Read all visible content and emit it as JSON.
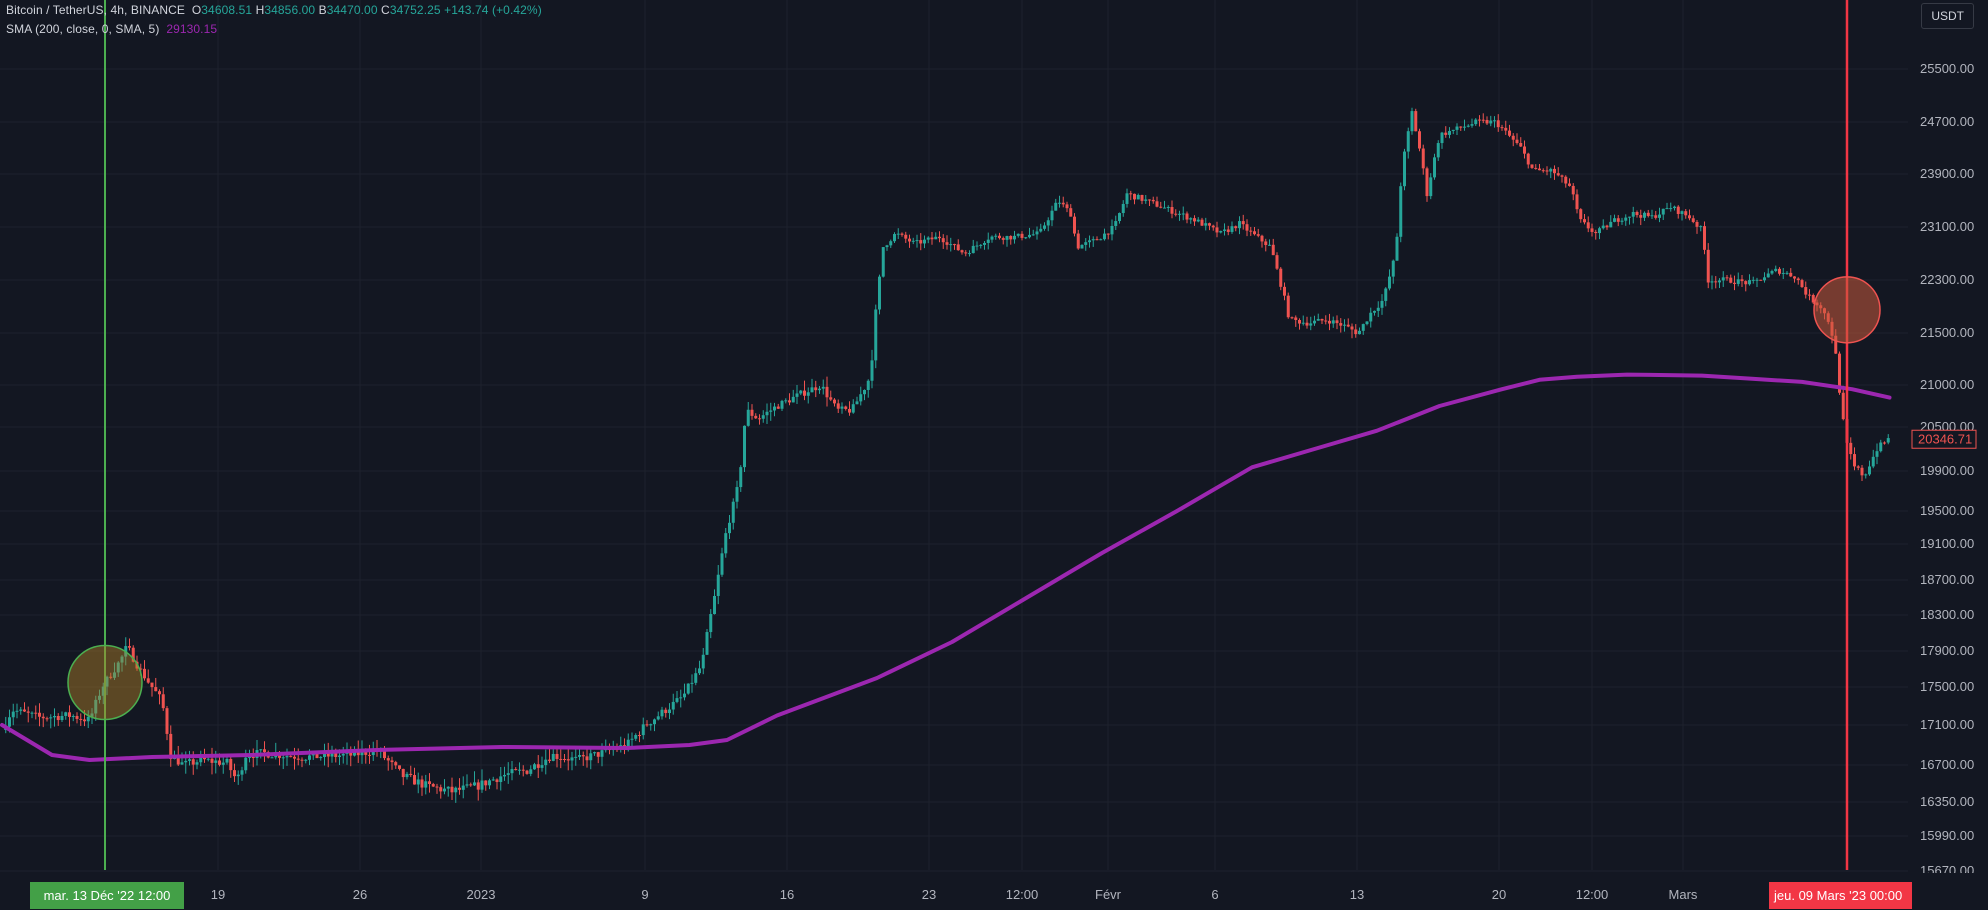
{
  "legend": {
    "symbol": "Bitcoin / TetherUS, 4h, BINANCE",
    "o_label": "O",
    "o_value": "34608.51",
    "h_label": "H",
    "h_value": "34856.00",
    "b_label": "B",
    "b_value": "34470.00",
    "c_label": "C",
    "c_value": "34752.25",
    "change": "+143.74 (+0.42%)",
    "sma_label": "SMA (200, close, 0, SMA, 5)",
    "sma_value": "29130.15"
  },
  "currency": "USDT",
  "colors": {
    "background": "#131722",
    "grid": "#1e222d",
    "up": "#26a69a",
    "down": "#ef5350",
    "sma": "#9c27b0",
    "green_marker": "#4caf50",
    "red_marker": "#f23645"
  },
  "chart_data": {
    "type": "candlestick",
    "interval": "4h",
    "y_axis": {
      "ticks": [
        "25500.00",
        "24700.00",
        "23900.00",
        "23100.00",
        "22300.00",
        "21500.00",
        "21000.00",
        "20500.00",
        "19900.00",
        "19500.00",
        "19100.00",
        "18700.00",
        "18300.00",
        "17900.00",
        "17500.00",
        "17100.00",
        "16700.00",
        "16350.00",
        "15990.00",
        "15670.00"
      ]
    },
    "x_axis": {
      "ticks": [
        "19",
        "26",
        "2023",
        "9",
        "16",
        "23",
        "12:00",
        "Févr",
        "6",
        "13",
        "20",
        "12:00",
        "Mars"
      ]
    },
    "last_price": "20346.71",
    "markers": [
      {
        "type": "vertical",
        "color": "green",
        "label": "mar. 13 Déc '22   12:00"
      },
      {
        "type": "vertical",
        "color": "red",
        "label": "jeu. 09 Mars '23   00:00"
      }
    ],
    "highlight_circles": [
      {
        "color": "green",
        "price": 17550
      },
      {
        "color": "red",
        "price": 21850
      }
    ],
    "price_path": [
      [
        0,
        17050
      ],
      [
        8,
        17260
      ],
      [
        30,
        17180
      ],
      [
        55,
        17200
      ],
      [
        70,
        17150
      ],
      [
        80,
        17500
      ],
      [
        95,
        17800
      ],
      [
        100,
        17950
      ],
      [
        110,
        17700
      ],
      [
        120,
        17500
      ],
      [
        128,
        17350
      ],
      [
        135,
        16800
      ],
      [
        145,
        16700
      ],
      [
        160,
        16750
      ],
      [
        180,
        16720
      ],
      [
        188,
        16550
      ],
      [
        195,
        16800
      ],
      [
        210,
        16820
      ],
      [
        240,
        16780
      ],
      [
        280,
        16800
      ],
      [
        300,
        16850
      ],
      [
        320,
        16600
      ],
      [
        340,
        16500
      ],
      [
        360,
        16450
      ],
      [
        380,
        16500
      ],
      [
        400,
        16600
      ],
      [
        420,
        16650
      ],
      [
        440,
        16800
      ],
      [
        460,
        16750
      ],
      [
        480,
        16820
      ],
      [
        500,
        16900
      ],
      [
        515,
        17100
      ],
      [
        530,
        17250
      ],
      [
        545,
        17400
      ],
      [
        560,
        17750
      ],
      [
        565,
        18150
      ],
      [
        570,
        18500
      ],
      [
        575,
        18900
      ],
      [
        580,
        19300
      ],
      [
        590,
        19800
      ],
      [
        595,
        20700
      ],
      [
        605,
        20600
      ],
      [
        620,
        20750
      ],
      [
        640,
        20900
      ],
      [
        655,
        21000
      ],
      [
        668,
        20700
      ],
      [
        680,
        20700
      ],
      [
        695,
        21100
      ],
      [
        700,
        22000
      ],
      [
        705,
        22800
      ],
      [
        715,
        23000
      ],
      [
        730,
        22850
      ],
      [
        750,
        22950
      ],
      [
        770,
        22700
      ],
      [
        790,
        22950
      ],
      [
        810,
        22950
      ],
      [
        830,
        23000
      ],
      [
        845,
        23500
      ],
      [
        855,
        23300
      ],
      [
        860,
        22800
      ],
      [
        875,
        22900
      ],
      [
        890,
        23100
      ],
      [
        900,
        23600
      ],
      [
        915,
        23500
      ],
      [
        935,
        23350
      ],
      [
        955,
        23200
      ],
      [
        975,
        23000
      ],
      [
        990,
        23150
      ],
      [
        1000,
        23000
      ],
      [
        1015,
        22800
      ],
      [
        1025,
        22100
      ],
      [
        1030,
        21700
      ],
      [
        1045,
        21650
      ],
      [
        1060,
        21700
      ],
      [
        1075,
        21600
      ],
      [
        1085,
        21500
      ],
      [
        1095,
        21800
      ],
      [
        1105,
        22000
      ],
      [
        1115,
        22700
      ],
      [
        1120,
        24000
      ],
      [
        1128,
        24850
      ],
      [
        1135,
        24200
      ],
      [
        1140,
        23600
      ],
      [
        1150,
        24500
      ],
      [
        1165,
        24600
      ],
      [
        1180,
        24700
      ],
      [
        1195,
        24700
      ],
      [
        1205,
        24500
      ],
      [
        1215,
        24300
      ],
      [
        1225,
        23950
      ],
      [
        1240,
        23950
      ],
      [
        1255,
        23700
      ],
      [
        1262,
        23200
      ],
      [
        1275,
        23000
      ],
      [
        1290,
        23200
      ],
      [
        1305,
        23300
      ],
      [
        1320,
        23250
      ],
      [
        1335,
        23400
      ],
      [
        1350,
        23250
      ],
      [
        1360,
        23050
      ],
      [
        1365,
        22300
      ],
      [
        1380,
        22300
      ],
      [
        1400,
        22250
      ],
      [
        1420,
        22450
      ],
      [
        1435,
        22350
      ],
      [
        1445,
        22050
      ],
      [
        1455,
        21900
      ],
      [
        1462,
        21650
      ],
      [
        1468,
        21200
      ],
      [
        1475,
        20300
      ],
      [
        1482,
        19950
      ],
      [
        1490,
        19850
      ],
      [
        1500,
        20200
      ],
      [
        1510,
        20350
      ]
    ],
    "sma_path": [
      [
        0,
        17100
      ],
      [
        40,
        16800
      ],
      [
        70,
        16750
      ],
      [
        120,
        16780
      ],
      [
        200,
        16800
      ],
      [
        300,
        16850
      ],
      [
        400,
        16880
      ],
      [
        500,
        16870
      ],
      [
        550,
        16900
      ],
      [
        580,
        16950
      ],
      [
        620,
        17200
      ],
      [
        700,
        17600
      ],
      [
        760,
        18000
      ],
      [
        820,
        18500
      ],
      [
        880,
        19000
      ],
      [
        940,
        19500
      ],
      [
        1000,
        19950
      ],
      [
        1050,
        20200
      ],
      [
        1100,
        20450
      ],
      [
        1150,
        20750
      ],
      [
        1200,
        20950
      ],
      [
        1230,
        21050
      ],
      [
        1260,
        21080
      ],
      [
        1300,
        21100
      ],
      [
        1360,
        21090
      ],
      [
        1400,
        21060
      ],
      [
        1440,
        21030
      ],
      [
        1480,
        20950
      ],
      [
        1510,
        20850
      ]
    ]
  }
}
